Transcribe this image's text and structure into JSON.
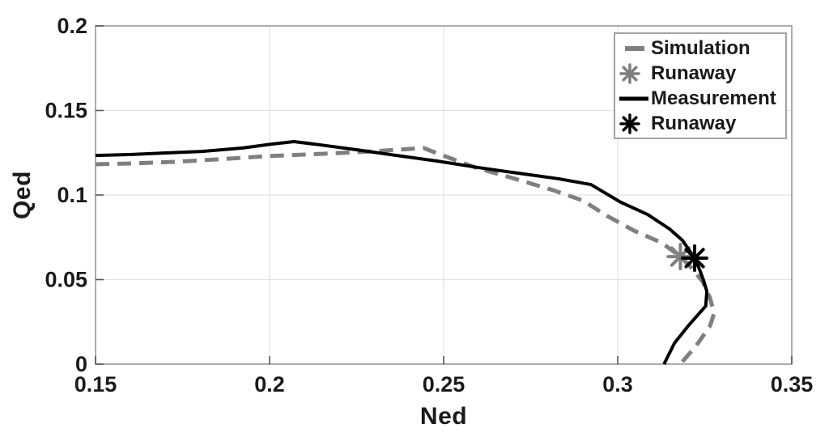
{
  "chart_data": {
    "type": "line",
    "title": "",
    "xlabel": "Ned",
    "ylabel": "Qed",
    "xlim": [
      0.15,
      0.35
    ],
    "ylim": [
      0,
      0.2
    ],
    "xticks": {
      "values": [
        0.15,
        0.2,
        0.25,
        0.3,
        0.35
      ],
      "labels": [
        "0.15",
        "0.2",
        "0.25",
        "0.3",
        "0.35"
      ]
    },
    "yticks": {
      "values": [
        0,
        0.05,
        0.1,
        0.15,
        0.2
      ],
      "labels": [
        "0",
        "0.05",
        "0.1",
        "0.15",
        "0.2"
      ]
    },
    "grid": true,
    "legend_position": "top-right",
    "styles": {
      "grid_color": "#e3e3e3",
      "box_color": "#9a9a9a",
      "tick_color": "#555555",
      "label_color": "#1a1a1a",
      "gray_series_color": "#7f7f7f",
      "black_series_color": "#000000",
      "background": "#ffffff"
    },
    "series": [
      {
        "name": "Simulation",
        "kind": "line",
        "line_style": "dashed",
        "color": "#7f7f7f",
        "line_width": 5,
        "dash_pattern": "17 10",
        "points": [
          [
            0.15,
            0.1182
          ],
          [
            0.1609,
            0.1187
          ],
          [
            0.1726,
            0.1196
          ],
          [
            0.1853,
            0.1211
          ],
          [
            0.1993,
            0.123
          ],
          [
            0.2156,
            0.1244
          ],
          [
            0.2295,
            0.1258
          ],
          [
            0.2442,
            0.1278
          ],
          [
            0.2516,
            0.122
          ],
          [
            0.2591,
            0.1163
          ],
          [
            0.2698,
            0.11
          ],
          [
            0.2814,
            0.1029
          ],
          [
            0.29,
            0.0967
          ],
          [
            0.297,
            0.0876
          ],
          [
            0.3047,
            0.0789
          ],
          [
            0.3126,
            0.0718
          ],
          [
            0.318,
            0.0636
          ],
          [
            0.321,
            0.0574
          ],
          [
            0.3244,
            0.0488
          ],
          [
            0.3265,
            0.0392
          ],
          [
            0.3277,
            0.0301
          ],
          [
            0.3265,
            0.0225
          ],
          [
            0.3226,
            0.011
          ],
          [
            0.3184,
            0.001
          ]
        ]
      },
      {
        "name": "Runaway",
        "kind": "marker",
        "marker": "asterisk",
        "color": "#7f7f7f",
        "marker_size": 15,
        "marker_stroke": 4,
        "points": [
          [
            0.318,
            0.0636
          ]
        ]
      },
      {
        "name": "Measurement",
        "kind": "line",
        "line_style": "solid",
        "color": "#000000",
        "line_width": 4,
        "points": [
          [
            0.15,
            0.1234
          ],
          [
            0.1598,
            0.1239
          ],
          [
            0.1702,
            0.1249
          ],
          [
            0.1807,
            0.1258
          ],
          [
            0.1923,
            0.1278
          ],
          [
            0.2005,
            0.1301
          ],
          [
            0.207,
            0.1316
          ],
          [
            0.2144,
            0.1297
          ],
          [
            0.2249,
            0.1268
          ],
          [
            0.2365,
            0.1234
          ],
          [
            0.2481,
            0.1201
          ],
          [
            0.2598,
            0.1163
          ],
          [
            0.2714,
            0.1129
          ],
          [
            0.283,
            0.1096
          ],
          [
            0.2923,
            0.1062
          ],
          [
            0.3009,
            0.0957
          ],
          [
            0.3086,
            0.0885
          ],
          [
            0.3149,
            0.0799
          ],
          [
            0.3186,
            0.0732
          ],
          [
            0.3221,
            0.0627
          ],
          [
            0.3235,
            0.056
          ],
          [
            0.3247,
            0.0493
          ],
          [
            0.3256,
            0.0431
          ],
          [
            0.3253,
            0.0344
          ],
          [
            0.3202,
            0.0225
          ],
          [
            0.3163,
            0.0124
          ],
          [
            0.3133,
            0.0
          ]
        ]
      },
      {
        "name": "Runaway",
        "kind": "marker",
        "marker": "asterisk",
        "color": "#000000",
        "marker_size": 15,
        "marker_stroke": 4,
        "points": [
          [
            0.3221,
            0.0627
          ]
        ]
      }
    ]
  }
}
